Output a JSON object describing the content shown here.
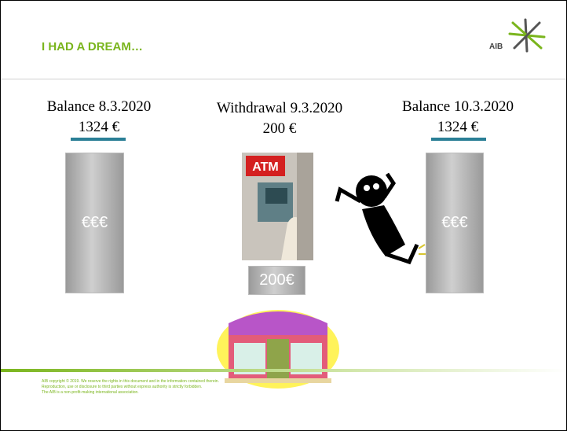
{
  "header": {
    "title": "I HAD A DREAM…",
    "logo": "AIB"
  },
  "columns": [
    {
      "label": "Balance 8.3.2020",
      "amount": "1324 €",
      "box": "€€€"
    },
    {
      "label": "Withdrawal 9.3.2020",
      "amount": "200 €",
      "box": "200€",
      "sign": "ATM"
    },
    {
      "label": "Balance 10.3.2020",
      "amount": "1324 €",
      "box": "€€€"
    }
  ],
  "footer": [
    "AIB copyright © 2019. We reserve the rights in this document and in the information contained therein.",
    "Reproduction, use or disclosure to third parties without express authority is strictly forbidden.",
    "The AIB is a non-profit-making international association."
  ]
}
